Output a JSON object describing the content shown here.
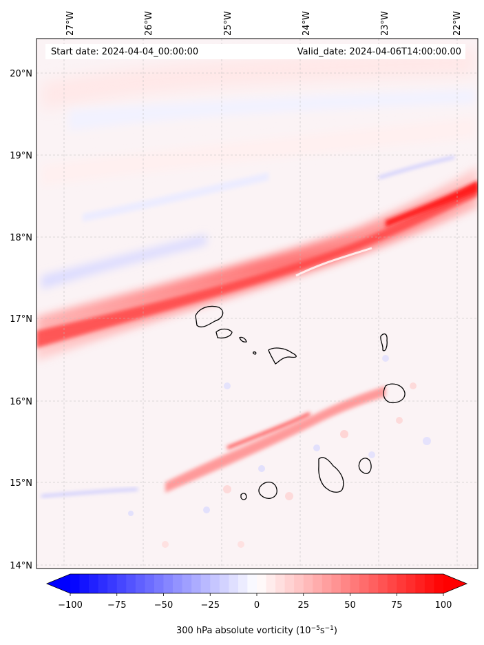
{
  "map": {
    "start_date": "Start date: 2024-04-04_00:00:00",
    "valid_date": "Valid_date: 2024-04-06T14:00:00.00",
    "lon_labels": [
      "27°W",
      "26°W",
      "25°W",
      "24°W",
      "23°W",
      "22°W"
    ],
    "lat_labels": [
      "20°N",
      "19°N",
      "18°N",
      "17°N",
      "16°N",
      "15°N",
      "14°N"
    ],
    "variable": "300 hPa absolute vorticity",
    "units_prefix": "(10",
    "units_exp1": "−5",
    "units_mid": "s",
    "units_exp2": "−1",
    "units_suffix": ")"
  },
  "colorbar": {
    "ticks": [
      "−100",
      "−75",
      "−50",
      "−25",
      "0",
      "25",
      "50",
      "75",
      "100"
    ],
    "min": -100,
    "max": 100,
    "low_color": "#0000ff",
    "high_color": "#ff0000",
    "mid_color": "#ffffff"
  },
  "icons": {
    "islands": "island-coastline-outline"
  }
}
